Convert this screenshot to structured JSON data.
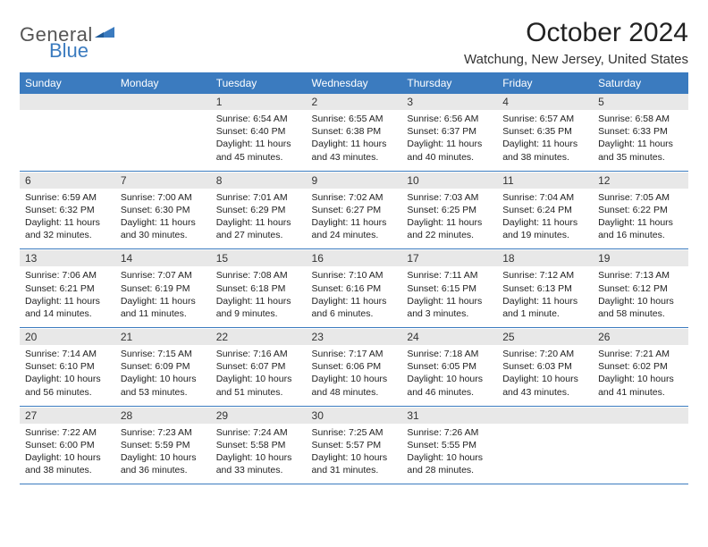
{
  "brand": {
    "name1": "General",
    "name2": "Blue",
    "accent_color": "#3b7bbf",
    "text_color": "#555"
  },
  "title": "October 2024",
  "location": "Watchung, New Jersey, United States",
  "day_headers": [
    "Sunday",
    "Monday",
    "Tuesday",
    "Wednesday",
    "Thursday",
    "Friday",
    "Saturday"
  ],
  "header_bg": "#3b7bbf",
  "header_fg": "#ffffff",
  "date_bg": "#e8e8e8",
  "weeks": [
    {
      "dates": [
        "",
        "",
        "1",
        "2",
        "3",
        "4",
        "5"
      ],
      "info": [
        "",
        "",
        "Sunrise: 6:54 AM\nSunset: 6:40 PM\nDaylight: 11 hours and 45 minutes.",
        "Sunrise: 6:55 AM\nSunset: 6:38 PM\nDaylight: 11 hours and 43 minutes.",
        "Sunrise: 6:56 AM\nSunset: 6:37 PM\nDaylight: 11 hours and 40 minutes.",
        "Sunrise: 6:57 AM\nSunset: 6:35 PM\nDaylight: 11 hours and 38 minutes.",
        "Sunrise: 6:58 AM\nSunset: 6:33 PM\nDaylight: 11 hours and 35 minutes."
      ]
    },
    {
      "dates": [
        "6",
        "7",
        "8",
        "9",
        "10",
        "11",
        "12"
      ],
      "info": [
        "Sunrise: 6:59 AM\nSunset: 6:32 PM\nDaylight: 11 hours and 32 minutes.",
        "Sunrise: 7:00 AM\nSunset: 6:30 PM\nDaylight: 11 hours and 30 minutes.",
        "Sunrise: 7:01 AM\nSunset: 6:29 PM\nDaylight: 11 hours and 27 minutes.",
        "Sunrise: 7:02 AM\nSunset: 6:27 PM\nDaylight: 11 hours and 24 minutes.",
        "Sunrise: 7:03 AM\nSunset: 6:25 PM\nDaylight: 11 hours and 22 minutes.",
        "Sunrise: 7:04 AM\nSunset: 6:24 PM\nDaylight: 11 hours and 19 minutes.",
        "Sunrise: 7:05 AM\nSunset: 6:22 PM\nDaylight: 11 hours and 16 minutes."
      ]
    },
    {
      "dates": [
        "13",
        "14",
        "15",
        "16",
        "17",
        "18",
        "19"
      ],
      "info": [
        "Sunrise: 7:06 AM\nSunset: 6:21 PM\nDaylight: 11 hours and 14 minutes.",
        "Sunrise: 7:07 AM\nSunset: 6:19 PM\nDaylight: 11 hours and 11 minutes.",
        "Sunrise: 7:08 AM\nSunset: 6:18 PM\nDaylight: 11 hours and 9 minutes.",
        "Sunrise: 7:10 AM\nSunset: 6:16 PM\nDaylight: 11 hours and 6 minutes.",
        "Sunrise: 7:11 AM\nSunset: 6:15 PM\nDaylight: 11 hours and 3 minutes.",
        "Sunrise: 7:12 AM\nSunset: 6:13 PM\nDaylight: 11 hours and 1 minute.",
        "Sunrise: 7:13 AM\nSunset: 6:12 PM\nDaylight: 10 hours and 58 minutes."
      ]
    },
    {
      "dates": [
        "20",
        "21",
        "22",
        "23",
        "24",
        "25",
        "26"
      ],
      "info": [
        "Sunrise: 7:14 AM\nSunset: 6:10 PM\nDaylight: 10 hours and 56 minutes.",
        "Sunrise: 7:15 AM\nSunset: 6:09 PM\nDaylight: 10 hours and 53 minutes.",
        "Sunrise: 7:16 AM\nSunset: 6:07 PM\nDaylight: 10 hours and 51 minutes.",
        "Sunrise: 7:17 AM\nSunset: 6:06 PM\nDaylight: 10 hours and 48 minutes.",
        "Sunrise: 7:18 AM\nSunset: 6:05 PM\nDaylight: 10 hours and 46 minutes.",
        "Sunrise: 7:20 AM\nSunset: 6:03 PM\nDaylight: 10 hours and 43 minutes.",
        "Sunrise: 7:21 AM\nSunset: 6:02 PM\nDaylight: 10 hours and 41 minutes."
      ]
    },
    {
      "dates": [
        "27",
        "28",
        "29",
        "30",
        "31",
        "",
        ""
      ],
      "info": [
        "Sunrise: 7:22 AM\nSunset: 6:00 PM\nDaylight: 10 hours and 38 minutes.",
        "Sunrise: 7:23 AM\nSunset: 5:59 PM\nDaylight: 10 hours and 36 minutes.",
        "Sunrise: 7:24 AM\nSunset: 5:58 PM\nDaylight: 10 hours and 33 minutes.",
        "Sunrise: 7:25 AM\nSunset: 5:57 PM\nDaylight: 10 hours and 31 minutes.",
        "Sunrise: 7:26 AM\nSunset: 5:55 PM\nDaylight: 10 hours and 28 minutes.",
        "",
        ""
      ]
    }
  ]
}
